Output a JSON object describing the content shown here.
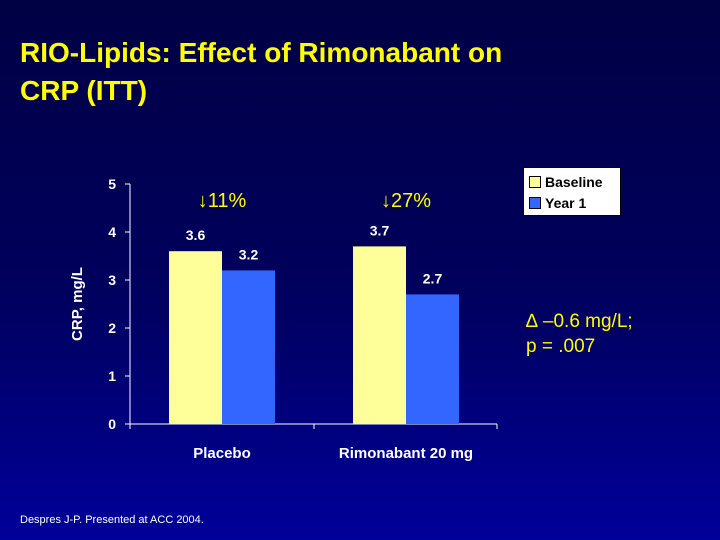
{
  "slide": {
    "title_line1": "RIO-Lipids: Effect of Rimonabant on",
    "title_line2": "CRP (ITT)",
    "footnote": "Despres J-P. Presented at ACC 2004.",
    "delta_line1": "∆ –0.6 mg/L;",
    "delta_line2": "p = .007"
  },
  "colors": {
    "baseline": "#ffff99",
    "year1": "#3366ff",
    "title": "#ffff00",
    "axis": "#ffffff",
    "text": "#ffffff"
  },
  "chart_data": {
    "type": "bar",
    "title": "",
    "xlabel": "",
    "ylabel": "CRP, mg/L",
    "ylim": [
      0,
      5
    ],
    "yticks": [
      0,
      1,
      2,
      3,
      4,
      5
    ],
    "grid": false,
    "categories": [
      "Placebo",
      "Rimonabant 20 mg"
    ],
    "series": [
      {
        "name": "Baseline",
        "values": [
          3.6,
          3.7
        ],
        "labels": [
          "3.6",
          "3.7"
        ]
      },
      {
        "name": "Year 1",
        "values": [
          3.2,
          2.7
        ],
        "labels": [
          "3.2",
          "2.7"
        ]
      }
    ],
    "annotations": [
      "↓11%",
      "↓27%"
    ],
    "legend_position": "top-right"
  }
}
